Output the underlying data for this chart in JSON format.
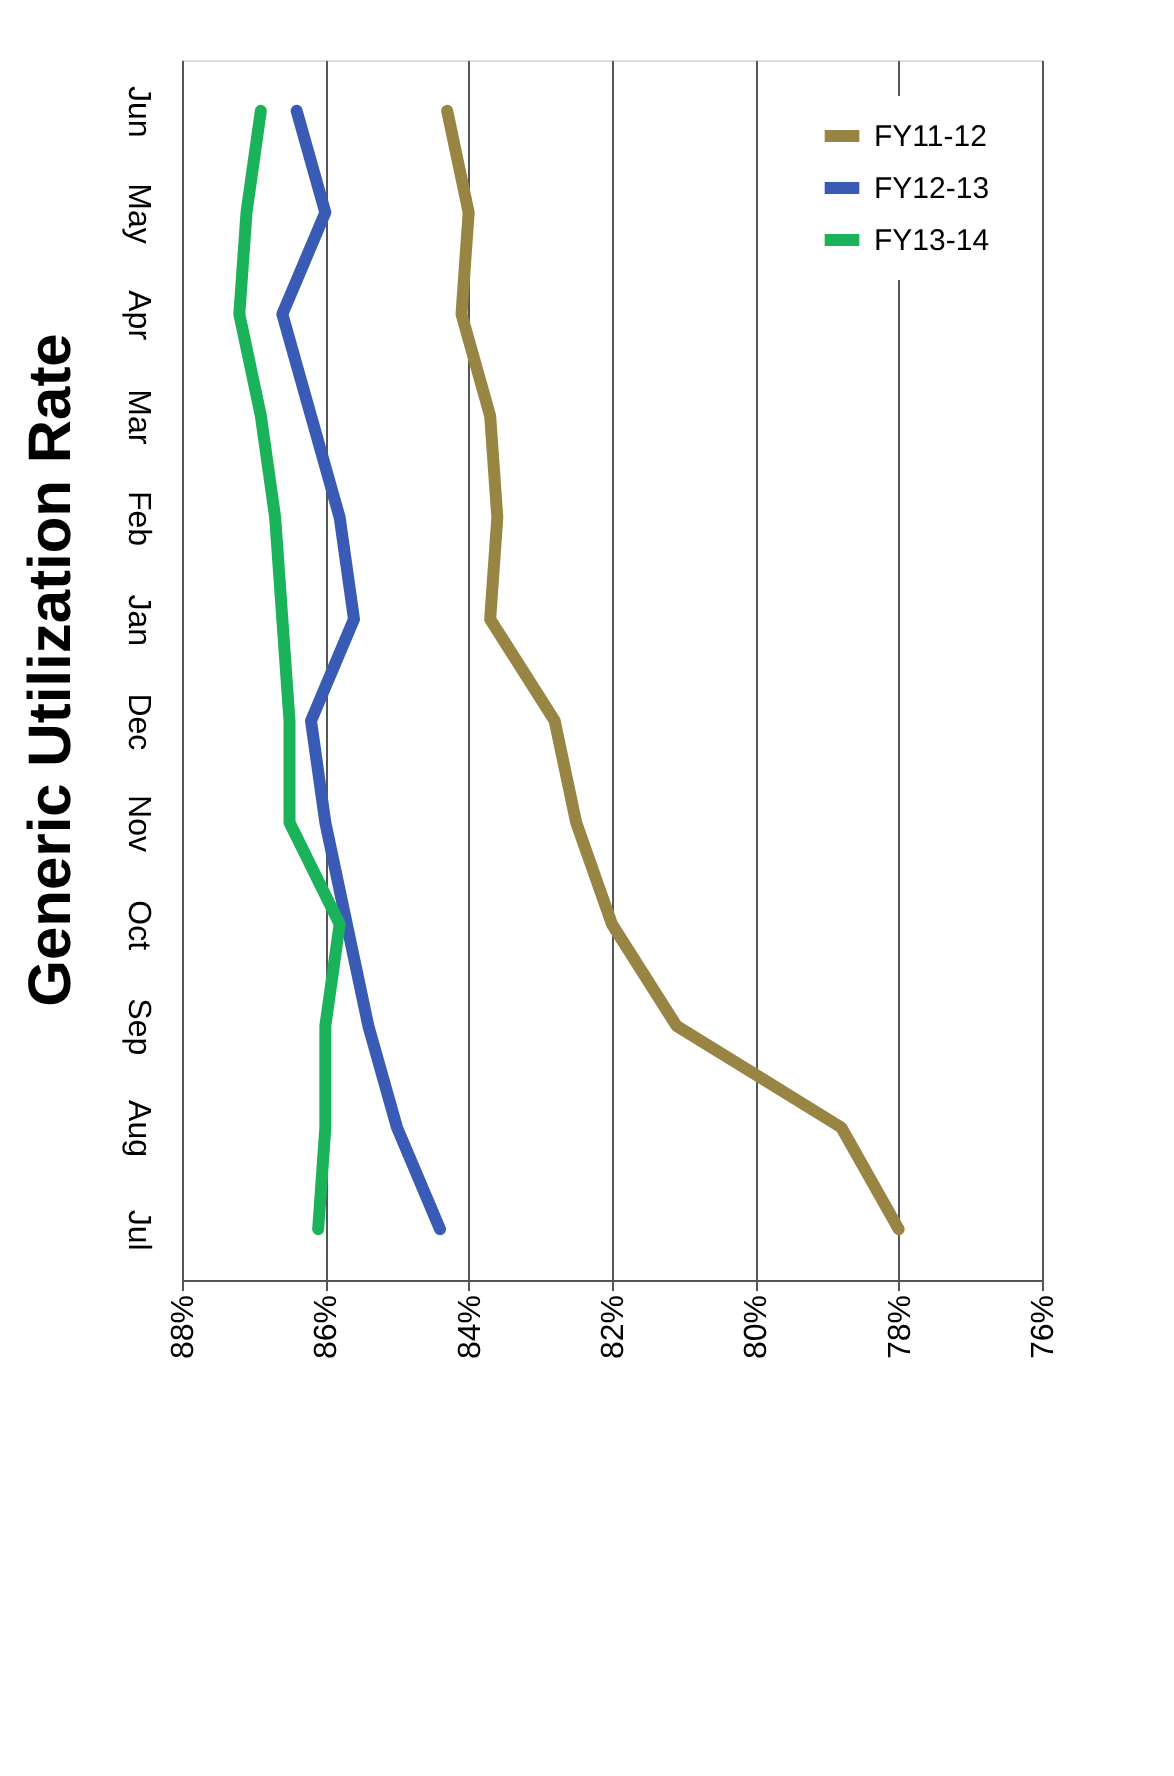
{
  "chart_data": {
    "type": "line",
    "title": "Generic Utilization Rate",
    "orientation": "horizontal",
    "categories": [
      "Jun",
      "May",
      "Apr",
      "Mar",
      "Feb",
      "Jan",
      "Dec",
      "Nov",
      "Oct",
      "Sep",
      "Aug",
      "Jul"
    ],
    "series": [
      {
        "name": "FY11-12",
        "color": "#998543",
        "values": [
          84.3,
          84.0,
          84.1,
          83.7,
          83.6,
          83.7,
          82.8,
          82.5,
          82.0,
          81.1,
          78.8,
          78.0
        ]
      },
      {
        "name": "FY12-13",
        "color": "#3a5bb5",
        "values": [
          86.4,
          86.0,
          86.6,
          86.2,
          85.8,
          85.6,
          86.2,
          86.0,
          85.7,
          85.4,
          85.0,
          84.4
        ]
      },
      {
        "name": "FY13-14",
        "color": "#1ab35a",
        "values": [
          86.9,
          87.1,
          87.2,
          86.9,
          86.7,
          86.6,
          86.5,
          86.5,
          85.8,
          86.0,
          86.0,
          86.1
        ]
      }
    ],
    "xlim": [
      88,
      76
    ],
    "xticks": [
      {
        "value": 88,
        "label": "88%"
      },
      {
        "value": 86,
        "label": "86%"
      },
      {
        "value": 84,
        "label": "84%"
      },
      {
        "value": 82,
        "label": "82%"
      },
      {
        "value": 80,
        "label": "80%"
      },
      {
        "value": 78,
        "label": "78%"
      },
      {
        "value": 76,
        "label": "76%"
      }
    ],
    "grid": "x",
    "legend": "top right",
    "marker": "none",
    "line_style": "solid"
  }
}
